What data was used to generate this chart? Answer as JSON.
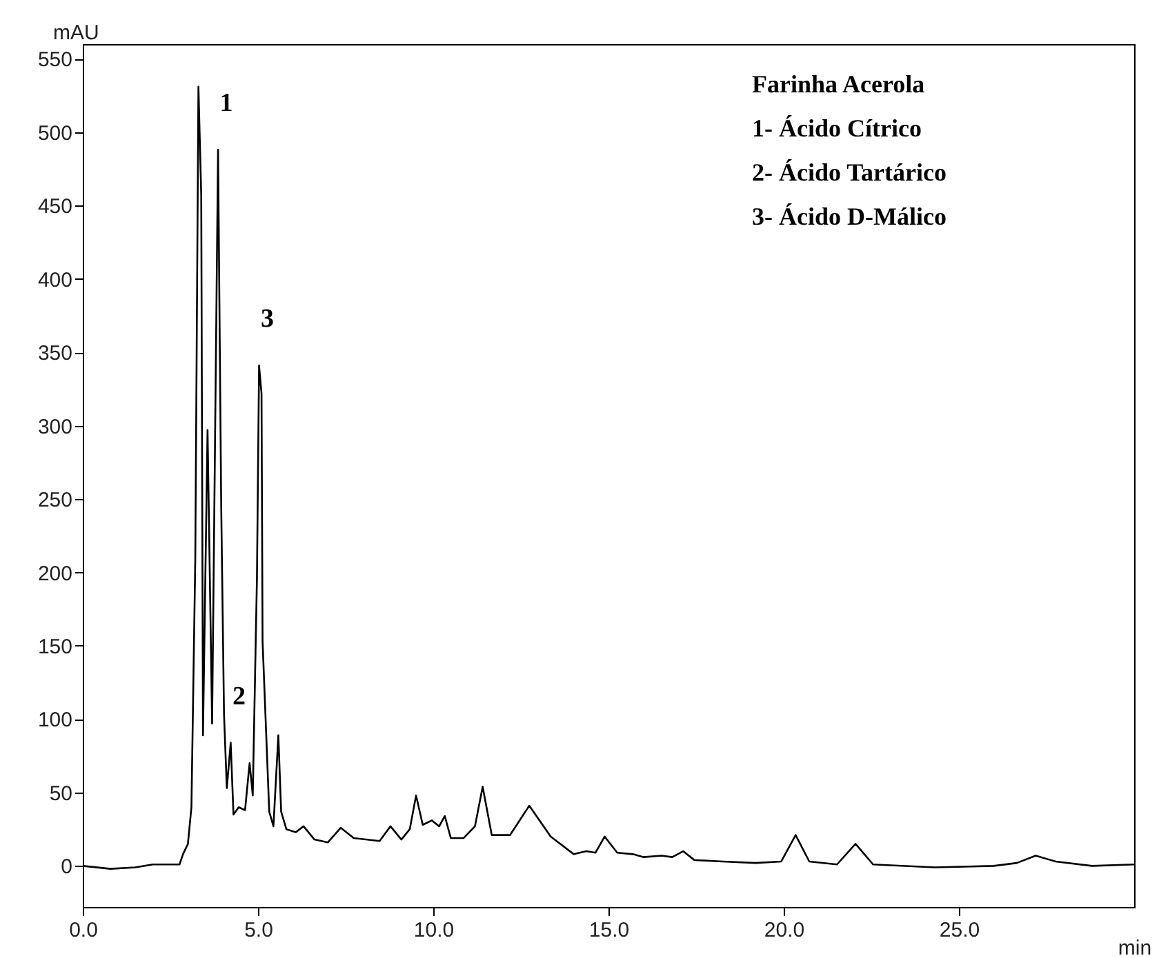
{
  "chart_data": {
    "type": "line",
    "title": "Farinha Acerola",
    "xlabel": "min",
    "ylabel": "mAU",
    "annotations": [
      "1- Ácido Cítrico",
      "2- Ácido Tartárico",
      "3- Ácido D-Málico",
      {
        "text": "1",
        "x": 3.86,
        "y": 488
      },
      {
        "text": "2",
        "x": 4.22,
        "y": 84
      },
      {
        "text": "3",
        "x": 5.03,
        "y": 341
      }
    ],
    "x": [
      0,
      0.79,
      1.5,
      2.0,
      2.76,
      2.86,
      3.0,
      3.1,
      3.21,
      3.3,
      3.38,
      3.43,
      3.56,
      3.69,
      3.86,
      3.95,
      4.03,
      4.11,
      4.22,
      4.3,
      4.45,
      4.63,
      4.76,
      4.85,
      4.97,
      5.03,
      5.1,
      5.13,
      5.32,
      5.44,
      5.58,
      5.66,
      5.81,
      6.08,
      6.3,
      6.61,
      6.99,
      7.36,
      7.73,
      8.47,
      8.78,
      9.09,
      9.33,
      9.51,
      9.7,
      9.96,
      10.17,
      10.33,
      10.5,
      10.87,
      11.19,
      11.41,
      11.67,
      12.19,
      12.74,
      13.35,
      14.01,
      14.37,
      14.63,
      14.89,
      15.25,
      15.7,
      15.99,
      16.52,
      16.82,
      17.13,
      17.45,
      18.26,
      19.2,
      19.93,
      20.34,
      20.73,
      21.52,
      22.05,
      22.55,
      24.32,
      25.99,
      26.65,
      27.19,
      27.76,
      28.8,
      30
    ],
    "series": [
      {
        "color": "#000000",
        "values": [
          0,
          -2,
          -1,
          1,
          1,
          8,
          15,
          40,
          209,
          531,
          457,
          89,
          297,
          97,
          488,
          245,
          103,
          53,
          84,
          35,
          40,
          38,
          70,
          48,
          197,
          341,
          322,
          153,
          37,
          27,
          89,
          37,
          25,
          23,
          27,
          18,
          16,
          26,
          19,
          17,
          27,
          18,
          25,
          48,
          28,
          31,
          27,
          34,
          19,
          19,
          27,
          54,
          21,
          21,
          41,
          20,
          8,
          10,
          9,
          20,
          9,
          8,
          6,
          7,
          6,
          10,
          4,
          3,
          2,
          3,
          21,
          3,
          1,
          15,
          1,
          -1,
          0,
          2,
          7,
          3,
          0,
          1
        ]
      }
    ],
    "xlim": [
      0,
      30
    ],
    "ylim": [
      -28,
      560
    ],
    "xticks": [
      {
        "value": 0,
        "label": "0.0"
      },
      {
        "value": 5,
        "label": "5.0"
      },
      {
        "value": 10,
        "label": "10.0"
      },
      {
        "value": 15,
        "label": "15.0"
      },
      {
        "value": 20,
        "label": "20.0"
      },
      {
        "value": 25,
        "label": "25.0"
      }
    ],
    "yticks": [
      0,
      50,
      100,
      150,
      200,
      250,
      300,
      350,
      400,
      450,
      500,
      550
    ],
    "grid": false,
    "marker": "none",
    "line_style": "solid"
  }
}
